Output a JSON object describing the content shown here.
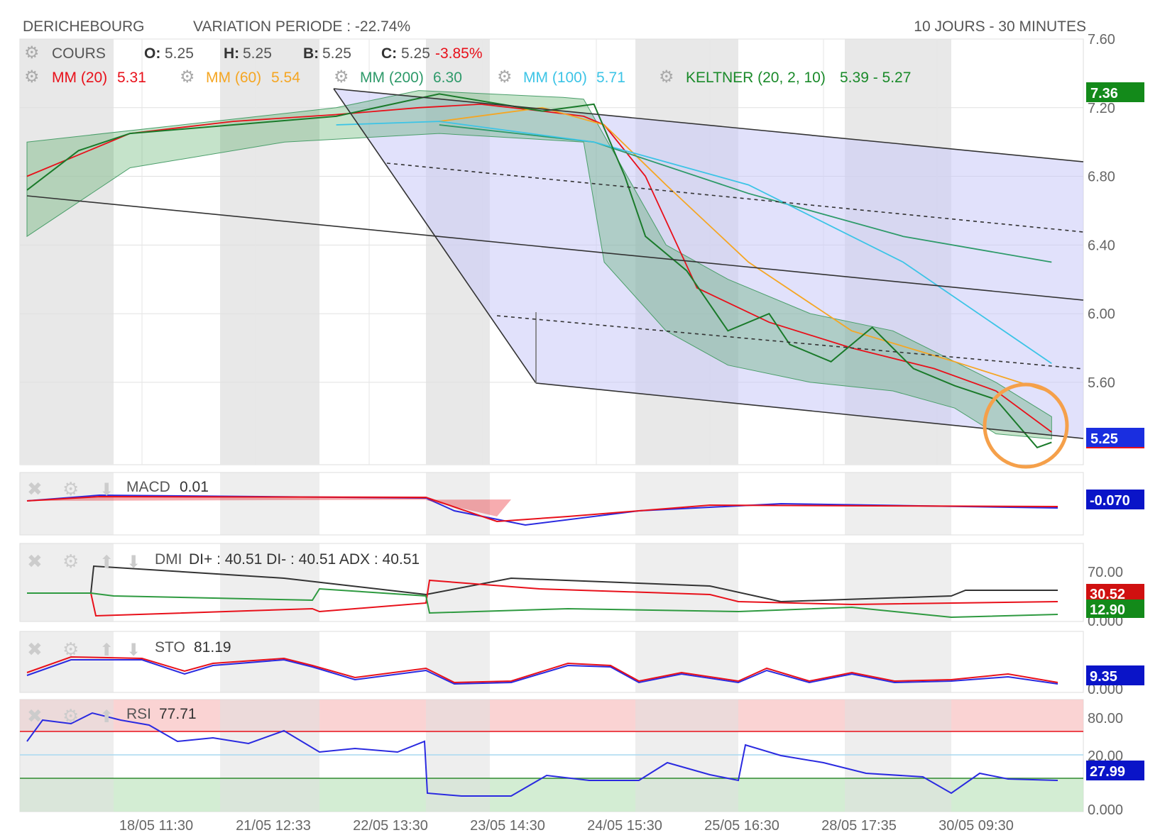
{
  "header": {
    "symbol": "DERICHEBOURG",
    "variation": "VARIATION PERIODE : -22.74%",
    "period": "10 JOURS - 30 MINUTES"
  },
  "legend": {
    "cours": {
      "label": "COURS",
      "o_label": "O:",
      "o": "5.25",
      "h_label": "H:",
      "h": "5.25",
      "b_label": "B:",
      "b": "5.25",
      "c_label": "C:",
      "c": "5.25",
      "change": "-3.85%"
    },
    "mm20": {
      "label": "MM (20)",
      "value": "5.31",
      "color": "#e8101a"
    },
    "mm60": {
      "label": "MM (60)",
      "value": "5.54",
      "color": "#f5a623"
    },
    "mm200": {
      "label": "MM (200)",
      "value": "6.30",
      "color": "#2e9a6a"
    },
    "mm100": {
      "label": "MM (100)",
      "value": "5.71",
      "color": "#3cc4e6"
    },
    "keltner": {
      "label": "KELTNER (20, 2, 10)",
      "value": "5.39 - 5.27",
      "color": "#1a8a2a"
    }
  },
  "panels": {
    "macd": {
      "label": "MACD",
      "value": "0.01",
      "badge": "-0.070",
      "badge_color": "#0a14c8"
    },
    "dmi": {
      "label": "DMI",
      "value": "DI+ : 40.51 DI- : 40.51 ADX : 40.51",
      "ticks": [
        "70.00",
        "0.000"
      ],
      "badge_red": "30.52",
      "badge_green": "12.90"
    },
    "sto": {
      "label": "STO",
      "value": "81.19",
      "badge": "9.35",
      "tick": "0.000"
    },
    "rsi": {
      "label": "RSI",
      "value": "77.71",
      "ticks": [
        "80.00",
        "20.00",
        "0.000"
      ],
      "badge": "27.99"
    }
  },
  "chart_data": {
    "type": "line",
    "y_ticks": [
      "7.60",
      "7.20",
      "6.80",
      "6.40",
      "6.00",
      "5.60"
    ],
    "ylim": [
      5.12,
      7.6
    ],
    "current_badge": "5.25",
    "high_badge": "7.36",
    "x_labels": [
      "18/05 11:30",
      "21/05 12:33",
      "22/05 13:30",
      "23/05 14:30",
      "24/05 15:30",
      "25/05 16:30",
      "28/05 17:35",
      "30/05 09:30"
    ],
    "price_x": [
      0,
      5,
      10,
      20,
      30,
      40,
      50,
      55,
      58,
      60,
      64,
      68,
      72,
      74,
      78,
      82,
      86,
      90,
      94,
      98,
      99.4
    ],
    "price_y": [
      6.72,
      6.95,
      7.05,
      7.1,
      7.15,
      7.28,
      7.18,
      7.22,
      6.8,
      6.45,
      6.25,
      5.9,
      6.0,
      5.82,
      5.72,
      5.92,
      5.68,
      5.58,
      5.5,
      5.22,
      5.25
    ],
    "series": [
      {
        "color": "#e8101a",
        "x": [
          0,
          10,
          20,
          30,
          38,
          44,
          50,
          54,
          56,
          60,
          65,
          72,
          80,
          88,
          94,
          99.4
        ],
        "y": [
          6.8,
          7.05,
          7.12,
          7.16,
          7.2,
          7.22,
          7.18,
          7.15,
          7.1,
          6.8,
          6.15,
          5.95,
          5.8,
          5.68,
          5.55,
          5.31
        ]
      },
      {
        "color": "#f5a623",
        "x": [
          40,
          50,
          56,
          62,
          70,
          80,
          90,
          99.4
        ],
        "y": [
          7.12,
          7.2,
          7.1,
          6.75,
          6.3,
          5.9,
          5.72,
          5.54
        ]
      },
      {
        "color": "#2e9a6a",
        "x": [
          40,
          55,
          70,
          85,
          99.4
        ],
        "y": [
          7.1,
          7.0,
          6.7,
          6.45,
          6.3
        ]
      },
      {
        "color": "#3cc4e6",
        "x": [
          30,
          40,
          55,
          70,
          85,
          99.4
        ],
        "y": [
          7.1,
          7.12,
          7.0,
          6.75,
          6.3,
          5.71
        ]
      }
    ],
    "keltner_upper": [
      [
        0,
        7.0
      ],
      [
        15,
        7.1
      ],
      [
        30,
        7.2
      ],
      [
        38,
        7.3
      ],
      [
        52,
        7.26
      ],
      [
        54,
        7.25
      ],
      [
        62,
        6.4
      ],
      [
        68,
        6.2
      ],
      [
        76,
        6.0
      ],
      [
        84,
        5.9
      ],
      [
        90,
        5.72
      ],
      [
        94,
        5.6
      ],
      [
        99.4,
        5.4
      ]
    ],
    "keltner_lower": [
      [
        99.4,
        5.27
      ],
      [
        94,
        5.3
      ],
      [
        90,
        5.45
      ],
      [
        84,
        5.55
      ],
      [
        76,
        5.6
      ],
      [
        68,
        5.7
      ],
      [
        62,
        5.9
      ],
      [
        56,
        6.3
      ],
      [
        54,
        7.0
      ],
      [
        40,
        7.05
      ],
      [
        25,
        7.0
      ],
      [
        10,
        6.85
      ],
      [
        0,
        6.45
      ]
    ]
  }
}
